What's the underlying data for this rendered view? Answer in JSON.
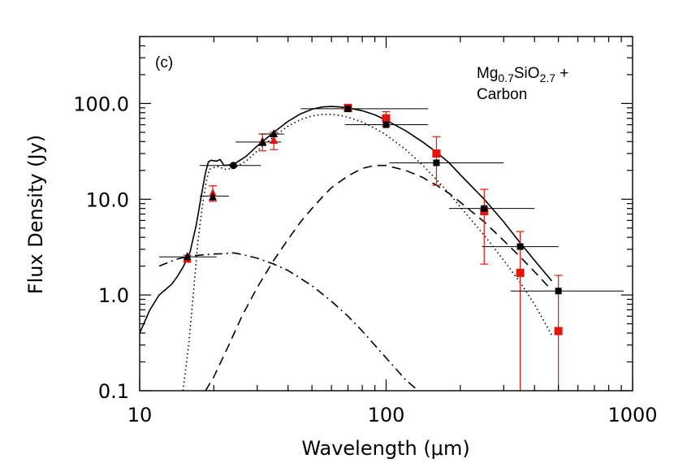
{
  "chart_data": {
    "type": "scatter",
    "panel_label": "(c)",
    "annotation": {
      "base": "Mg",
      "sub1": "0.7",
      "mid": "SiO",
      "sub2": "2.7",
      "tail": " +",
      "line2": "Carbon"
    },
    "xlabel": "Wavelength (μm)",
    "ylabel": "Flux Density (Jy)",
    "xscale": "log",
    "yscale": "log",
    "xlim": [
      10,
      1000
    ],
    "ylim": [
      0.1,
      500
    ],
    "xticks": [
      {
        "value": 10,
        "label": "10"
      },
      {
        "value": 100,
        "label": "100"
      },
      {
        "value": 1000,
        "label": "1000"
      }
    ],
    "yticks": [
      {
        "value": 0.1,
        "label": "0.1"
      },
      {
        "value": 1,
        "label": "1.0"
      },
      {
        "value": 10,
        "label": "10.0"
      },
      {
        "value": 100,
        "label": "100.0"
      }
    ],
    "grid": false,
    "colors": {
      "model": "#000000",
      "red": "#e8120c",
      "black": "#000000"
    },
    "series": [
      {
        "name": "",
        "marker": "square",
        "color": "#e8120c",
        "points": [
          {
            "x": 70,
            "y": 90,
            "ylo": 82,
            "yhi": 97
          },
          {
            "x": 100,
            "y": 70,
            "ylo": 58,
            "yhi": 82
          },
          {
            "x": 160,
            "y": 30,
            "ylo": 14,
            "yhi": 45
          },
          {
            "x": 250,
            "y": 7.5,
            "ylo": 2.1,
            "yhi": 12.7
          },
          {
            "x": 350,
            "y": 1.7,
            "ylo": 0.1,
            "yhi": 4.6
          },
          {
            "x": 500,
            "y": 0.42,
            "ylo": 0.1,
            "yhi": 1.6
          }
        ]
      },
      {
        "name": "",
        "marker": "triangle",
        "color": "#e8120c",
        "points": [
          {
            "x": 15.6,
            "y": 2.4,
            "ylo": 2.2,
            "yhi": 2.6
          },
          {
            "x": 19.8,
            "y": 11.5,
            "ylo": 9.5,
            "yhi": 13.8
          },
          {
            "x": 31.5,
            "y": 40,
            "ylo": 32,
            "yhi": 48
          },
          {
            "x": 35,
            "y": 41,
            "ylo": 33,
            "yhi": 50
          }
        ]
      },
      {
        "name": "",
        "marker": "triangle",
        "color": "#000000",
        "points": [
          {
            "x": 15.6,
            "y": 2.5
          },
          {
            "x": 19.8,
            "y": 10.5
          },
          {
            "x": 31.5,
            "y": 39
          },
          {
            "x": 35,
            "y": 48
          }
        ]
      },
      {
        "name": "",
        "marker": "square",
        "color": "#000000",
        "points": [
          {
            "x": 70,
            "y": 88,
            "xlo": 45,
            "xhi": 148
          },
          {
            "x": 100,
            "y": 60,
            "xlo": 68,
            "xhi": 148
          },
          {
            "x": 160,
            "y": 24,
            "xlo": 103,
            "xhi": 300
          },
          {
            "x": 250,
            "y": 8,
            "xlo": 180,
            "xhi": 400
          },
          {
            "x": 350,
            "y": 3.2,
            "xlo": 245,
            "xhi": 500
          },
          {
            "x": 500,
            "y": 1.1,
            "xlo": 320,
            "xhi": 920
          }
        ]
      },
      {
        "name": "",
        "marker": "circle",
        "color": "#000000",
        "points": [
          {
            "x": 24,
            "y": 22.5,
            "xlo": 17.5,
            "xhi": 31
          }
        ]
      },
      {
        "name": "",
        "marker": "hbar",
        "color": "#000000",
        "points": [
          {
            "x": 15.6,
            "y": 2.5,
            "xlo": 12,
            "xhi": 20.5
          },
          {
            "x": 19.8,
            "y": 10.8,
            "xlo": 17.5,
            "xhi": 23
          },
          {
            "x": 31.5,
            "y": 39.5,
            "xlo": 24.5,
            "xhi": 37.5
          },
          {
            "x": 35,
            "y": 48,
            "xlo": 31,
            "xhi": 38.5
          }
        ]
      }
    ],
    "models": [
      {
        "name": "",
        "style": "solid",
        "points": [
          [
            10,
            0.4
          ],
          [
            11,
            0.7
          ],
          [
            12,
            1.0
          ],
          [
            12.8,
            1.15
          ],
          [
            13.5,
            1.3
          ],
          [
            14.2,
            1.55
          ],
          [
            15,
            1.95
          ],
          [
            16,
            2.8
          ],
          [
            17,
            5.5
          ],
          [
            17.8,
            11
          ],
          [
            18.5,
            19
          ],
          [
            19,
            24.5
          ],
          [
            19.5,
            25.5
          ],
          [
            20.5,
            25
          ],
          [
            21.2,
            26
          ],
          [
            22,
            22.5
          ],
          [
            24,
            23
          ],
          [
            27,
            28
          ],
          [
            30,
            36
          ],
          [
            35,
            50
          ],
          [
            40,
            65
          ],
          [
            45,
            78
          ],
          [
            50,
            87
          ],
          [
            55,
            92
          ],
          [
            60,
            93
          ],
          [
            65,
            92
          ],
          [
            70,
            90
          ],
          [
            80,
            84
          ],
          [
            90,
            76
          ],
          [
            100,
            67
          ],
          [
            120,
            52
          ],
          [
            140,
            40
          ],
          [
            160,
            31
          ],
          [
            180,
            24
          ],
          [
            200,
            18
          ],
          [
            250,
            10
          ],
          [
            300,
            5.8
          ],
          [
            350,
            3.5
          ],
          [
            400,
            2.3
          ],
          [
            470,
            1.4
          ]
        ]
      },
      {
        "name": "",
        "style": "dotted",
        "points": [
          [
            15,
            0.1
          ],
          [
            15.8,
            0.3
          ],
          [
            16.5,
            1.0
          ],
          [
            17.2,
            3.5
          ],
          [
            18,
            9
          ],
          [
            18.7,
            16
          ],
          [
            19.2,
            20.5
          ],
          [
            20,
            21.5
          ],
          [
            21,
            22
          ],
          [
            22,
            20.5
          ],
          [
            24,
            21
          ],
          [
            27,
            25
          ],
          [
            30,
            32
          ],
          [
            35,
            45
          ],
          [
            40,
            58
          ],
          [
            45,
            68
          ],
          [
            50,
            74
          ],
          [
            55,
            77
          ],
          [
            60,
            77
          ],
          [
            65,
            75
          ],
          [
            70,
            72
          ],
          [
            80,
            64
          ],
          [
            90,
            55
          ],
          [
            100,
            47
          ],
          [
            120,
            33
          ],
          [
            140,
            23
          ],
          [
            160,
            16
          ],
          [
            180,
            11.5
          ],
          [
            200,
            8.3
          ],
          [
            250,
            4.2
          ],
          [
            300,
            2.3
          ],
          [
            350,
            1.35
          ],
          [
            400,
            0.8
          ],
          [
            470,
            0.38
          ]
        ]
      },
      {
        "name": "",
        "style": "dashed",
        "points": [
          [
            18.5,
            0.1
          ],
          [
            20,
            0.14
          ],
          [
            23,
            0.3
          ],
          [
            26,
            0.6
          ],
          [
            30,
            1.2
          ],
          [
            35,
            2.3
          ],
          [
            40,
            3.8
          ],
          [
            45,
            5.8
          ],
          [
            50,
            8.0
          ],
          [
            55,
            10.5
          ],
          [
            60,
            13.2
          ],
          [
            70,
            17.5
          ],
          [
            80,
            21
          ],
          [
            90,
            22.5
          ],
          [
            100,
            22.5
          ],
          [
            120,
            20
          ],
          [
            140,
            17
          ],
          [
            160,
            14
          ],
          [
            180,
            11.5
          ],
          [
            200,
            9.3
          ],
          [
            250,
            5.8
          ],
          [
            300,
            3.7
          ],
          [
            350,
            2.5
          ],
          [
            400,
            1.75
          ],
          [
            470,
            1.12
          ]
        ]
      },
      {
        "name": "",
        "style": "dashdot",
        "points": [
          [
            12,
            2.0
          ],
          [
            14,
            2.35
          ],
          [
            16,
            2.55
          ],
          [
            18,
            2.62
          ],
          [
            20,
            2.68
          ],
          [
            22,
            2.7
          ],
          [
            24,
            2.75
          ],
          [
            26,
            2.65
          ],
          [
            30,
            2.42
          ],
          [
            35,
            2.1
          ],
          [
            40,
            1.8
          ],
          [
            50,
            1.25
          ],
          [
            60,
            0.86
          ],
          [
            70,
            0.6
          ],
          [
            80,
            0.42
          ],
          [
            100,
            0.22
          ],
          [
            120,
            0.13
          ],
          [
            135,
            0.1
          ]
        ]
      }
    ]
  }
}
